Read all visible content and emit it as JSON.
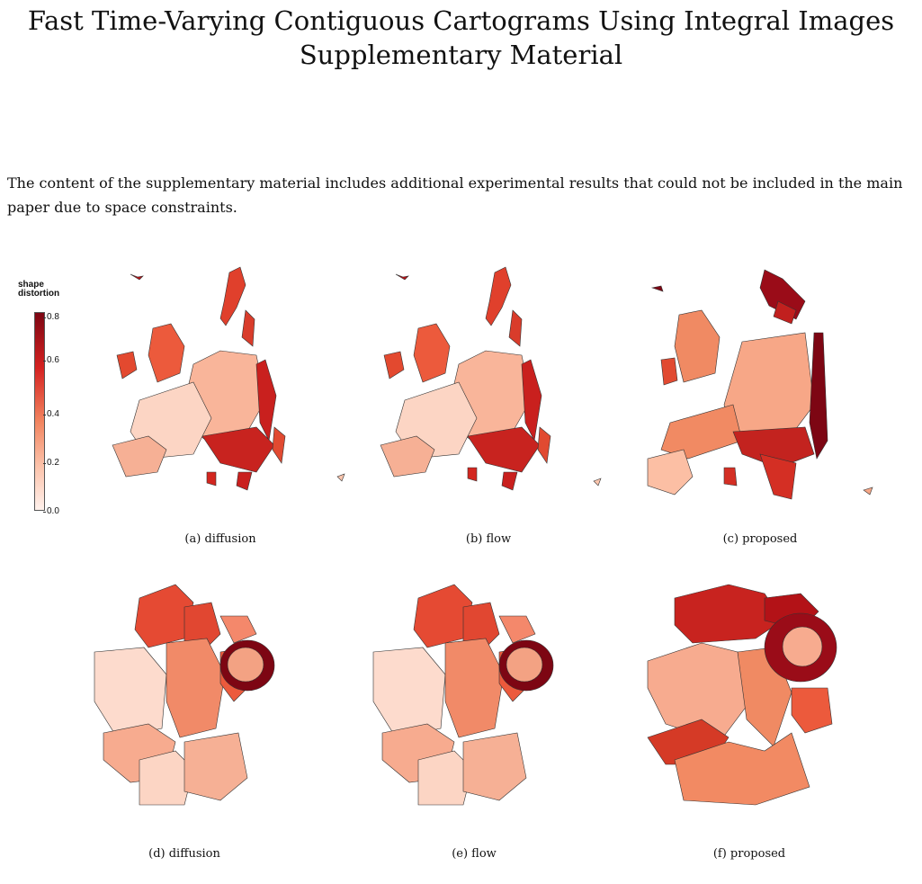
{
  "title_line1": "Fast Time-Varying Contiguous Cartograms Using Integral Images",
  "title_line2": "Supplementary Material",
  "intro": "The content of the supplementary material includes additional experimental results that could not be included in the main paper due to space constraints.",
  "legend": {
    "title_line1": "shape",
    "title_line2": "distortion",
    "ticks": [
      "0.8",
      "0.6",
      "0.4",
      "0.2",
      "0.0"
    ],
    "colors": {
      "low": "#fff1ec",
      "mid": "#f2845f",
      "high": "#7d0613"
    }
  },
  "captions": {
    "a": "(a) diffusion",
    "b": "(b) flow",
    "c": "(c) proposed",
    "d": "(d) diffusion",
    "e": "(e) flow",
    "f": "(f) proposed"
  }
}
